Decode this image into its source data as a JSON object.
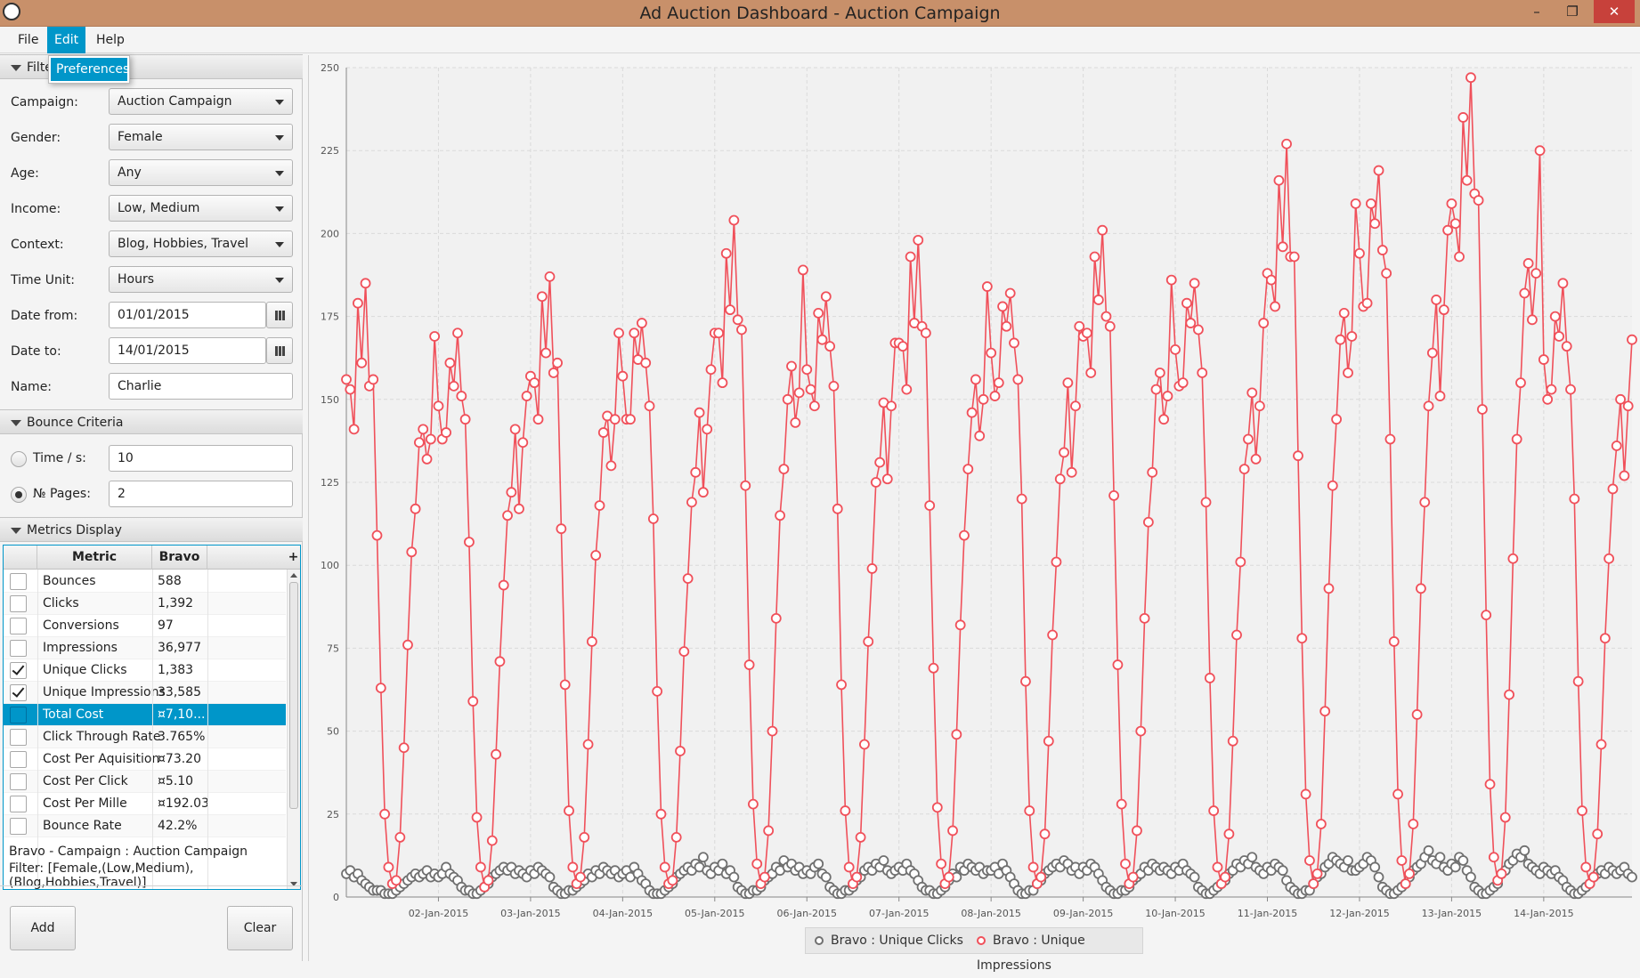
{
  "window": {
    "title": "Ad Auction Dashboard - Auction Campaign"
  },
  "menu": {
    "items": [
      "File",
      "Edit",
      "Help"
    ],
    "popup_item": "Preferences"
  },
  "filters": {
    "header": "Filte",
    "campaign": {
      "label": "Campaign:",
      "value": "Auction Campaign"
    },
    "gender": {
      "label": "Gender:",
      "value": "Female"
    },
    "age": {
      "label": "Age:",
      "value": "Any"
    },
    "income": {
      "label": "Income:",
      "value": "Low, Medium"
    },
    "context": {
      "label": "Context:",
      "value": "Blog, Hobbies, Travel"
    },
    "time_unit": {
      "label": "Time Unit:",
      "value": "Hours"
    },
    "date_from": {
      "label": "Date from:",
      "value": "01/01/2015"
    },
    "date_to": {
      "label": "Date to:",
      "value": "14/01/2015"
    },
    "name": {
      "label": "Name:",
      "value": "Charlie"
    }
  },
  "bounce": {
    "header": "Bounce Criteria",
    "time": {
      "label": "Time / s:",
      "value": "10",
      "selected": false
    },
    "pages": {
      "label": "№ Pages:",
      "value": "2",
      "selected": true
    }
  },
  "metrics": {
    "header": "Metrics Display",
    "columns": [
      "Metric",
      "Bravo"
    ],
    "add_column_symbol": "+",
    "rows": [
      {
        "metric": "Bounces",
        "value": "588",
        "checked": false
      },
      {
        "metric": "Clicks",
        "value": "1,392",
        "checked": false
      },
      {
        "metric": "Conversions",
        "value": "97",
        "checked": false
      },
      {
        "metric": "Impressions",
        "value": "36,977",
        "checked": false
      },
      {
        "metric": "Unique Clicks",
        "value": "1,383",
        "checked": true
      },
      {
        "metric": "Unique Impressions",
        "value": "33,585",
        "checked": true
      },
      {
        "metric": "Total Cost",
        "value": "¤7,10...",
        "checked": false,
        "selected": true
      },
      {
        "metric": "Click Through Rate",
        "value": "3.765%",
        "checked": false
      },
      {
        "metric": "Cost Per Aquisition",
        "value": "¤73.20",
        "checked": false
      },
      {
        "metric": "Cost Per Click",
        "value": "¤5.10",
        "checked": false
      },
      {
        "metric": "Cost Per Mille",
        "value": "¤192.03",
        "checked": false
      },
      {
        "metric": "Bounce Rate",
        "value": "42.2%",
        "checked": false
      }
    ]
  },
  "summary": {
    "line1": "Bravo - Campaign : Auction Campaign",
    "line2": "Filter: [Female,(Low,Medium),(Blog,Hobbies,Travel)]"
  },
  "buttons": {
    "add": "Add",
    "clear": "Clear"
  },
  "chart_data": {
    "type": "line",
    "y_ticks": [
      "0",
      "25",
      "50",
      "75",
      "100",
      "125",
      "150",
      "175",
      "200",
      "225",
      "250"
    ],
    "ylim": [
      0,
      250
    ],
    "x_ticks": [
      "02-Jan-2015",
      "03-Jan-2015",
      "04-Jan-2015",
      "05-Jan-2015",
      "06-Jan-2015",
      "07-Jan-2015",
      "08-Jan-2015",
      "09-Jan-2015",
      "10-Jan-2015",
      "11-Jan-2015",
      "12-Jan-2015",
      "13-Jan-2015",
      "14-Jan-2015"
    ],
    "hours_per_day": 24,
    "daily_peak_impressions": [
      181,
      170,
      184,
      177,
      200,
      184,
      196,
      187,
      200,
      189,
      222,
      221,
      243,
      185
    ],
    "grid": true,
    "legend_position": "bottom-center",
    "series": [
      {
        "name": "Bravo : Unique Clicks",
        "color": "#707070",
        "values": [
          7,
          8,
          6,
          7,
          5,
          4,
          3,
          2,
          2,
          2,
          1,
          1,
          1,
          2,
          3,
          4,
          5,
          6,
          7,
          6,
          7,
          8,
          6,
          7,
          6,
          7,
          9,
          7,
          6,
          5,
          3,
          2,
          2,
          1,
          1,
          2,
          3,
          4,
          6,
          7,
          8,
          9,
          8,
          9,
          7,
          8,
          7,
          6,
          8,
          7,
          9,
          8,
          7,
          6,
          3,
          2,
          1,
          1,
          2,
          2,
          3,
          4,
          5,
          7,
          6,
          8,
          7,
          9,
          8,
          7,
          8,
          6,
          7,
          8,
          6,
          9,
          7,
          5,
          4,
          2,
          1,
          1,
          1,
          2,
          3,
          4,
          6,
          7,
          8,
          9,
          8,
          10,
          9,
          12,
          8,
          7,
          9,
          8,
          10,
          7,
          8,
          6,
          3,
          2,
          1,
          1,
          2,
          2,
          3,
          5,
          6,
          7,
          9,
          8,
          11,
          9,
          10,
          8,
          9,
          7,
          8,
          7,
          9,
          10,
          7,
          6,
          3,
          2,
          1,
          1,
          2,
          2,
          3,
          5,
          6,
          8,
          9,
          8,
          10,
          9,
          11,
          8,
          7,
          8,
          9,
          8,
          10,
          8,
          7,
          5,
          3,
          2,
          2,
          1,
          1,
          2,
          3,
          5,
          7,
          6,
          9,
          8,
          10,
          9,
          8,
          9,
          7,
          8,
          8,
          9,
          7,
          10,
          8,
          6,
          4,
          2,
          1,
          1,
          2,
          2,
          4,
          5,
          7,
          8,
          9,
          10,
          9,
          11,
          10,
          8,
          9,
          7,
          9,
          8,
          10,
          9,
          7,
          5,
          3,
          2,
          1,
          1,
          2,
          2,
          3,
          5,
          6,
          7,
          9,
          8,
          10,
          9,
          8,
          9,
          8,
          7,
          9,
          8,
          10,
          8,
          7,
          6,
          3,
          2,
          1,
          1,
          2,
          3,
          4,
          5,
          7,
          8,
          10,
          9,
          11,
          10,
          12,
          9,
          8,
          7,
          9,
          8,
          10,
          9,
          8,
          5,
          3,
          2,
          1,
          1,
          2,
          2,
          4,
          6,
          7,
          9,
          10,
          12,
          11,
          10,
          9,
          11,
          8,
          8,
          9,
          10,
          12,
          11,
          9,
          6,
          3,
          2,
          1,
          1,
          2,
          3,
          4,
          6,
          8,
          9,
          10,
          12,
          14,
          11,
          10,
          12,
          9,
          8,
          10,
          9,
          12,
          11,
          8,
          6,
          3,
          2,
          1,
          1,
          2,
          3,
          4,
          7,
          8,
          10,
          11,
          13,
          12,
          14,
          10,
          9,
          8,
          7,
          9,
          8,
          7,
          8,
          6,
          5,
          3,
          2,
          1,
          1,
          2,
          3,
          4,
          6,
          7,
          8,
          7,
          9,
          8,
          7,
          8,
          9,
          7,
          6
        ]
      },
      {
        "name": "Bravo : Unique Impressions",
        "color": "#f0505a",
        "values": []
      }
    ]
  },
  "colors": {
    "accent": "#0096c9",
    "impressions": "#f0505a",
    "clicks": "#707070"
  }
}
